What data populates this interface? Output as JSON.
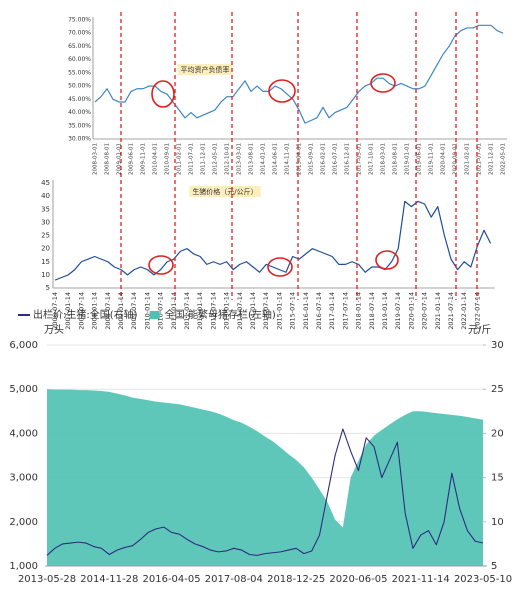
{
  "chart_data": [
    {
      "type": "line",
      "categories": [
        "2008-03-01",
        null,
        "2008-08-01",
        null,
        "2009-01-01",
        null,
        "2009-06-01",
        null,
        "2009-11-01",
        null,
        "2010-04-01",
        null,
        "2010-09-01",
        null,
        "2011-02-01",
        null,
        "2011-07-01",
        null,
        "2011-12-01",
        null,
        "2012-05-01",
        null,
        "2012-10-01",
        null,
        "2013-03-01",
        null,
        "2013-08-01",
        null,
        "2014-01-01",
        null,
        "2014-06-01",
        null,
        "2014-11-01",
        null,
        "2015-04-01",
        null,
        "2015-09-01",
        null,
        "2016-02-01",
        null,
        "2016-07-01",
        null,
        "2016-12-01",
        null,
        "2017-05-01",
        null,
        "2017-10-01",
        null,
        "2018-03-01",
        null,
        "2018-08-01",
        null,
        "2019-01-01",
        null,
        "2019-06-01",
        null,
        "2019-11-01",
        null,
        "2020-04-01",
        null,
        "2020-09-01",
        null,
        "2021-02-01",
        null,
        "2021-07-01",
        null,
        "2021-12-01",
        null,
        "2022-05-01"
      ],
      "series": [
        {
          "name": "平均资产负债率",
          "color": "#3d86c6",
          "values": [
            44,
            46,
            49,
            45,
            44,
            44,
            48,
            49,
            49,
            50,
            50,
            48,
            47,
            44,
            41,
            38,
            40,
            38,
            39,
            40,
            41,
            44,
            46,
            46,
            49,
            52,
            48,
            50,
            48,
            48,
            50,
            49,
            47,
            45,
            41,
            36,
            37,
            38,
            42,
            38,
            40,
            41,
            42,
            45,
            48,
            50,
            51,
            53,
            53,
            51,
            50,
            51,
            50,
            49,
            49,
            50,
            54,
            58,
            62,
            65,
            69,
            71,
            72,
            72,
            73,
            73,
            73,
            71,
            70
          ]
        }
      ],
      "ylim": [
        30,
        75
      ],
      "yticks": [
        {
          "value": 30,
          "label": "30.00%"
        },
        {
          "value": 35,
          "label": "35.00%"
        },
        {
          "value": 40,
          "label": "40.00%"
        },
        {
          "value": 45,
          "label": "45.00%"
        },
        {
          "value": 50,
          "label": "50.00%"
        },
        {
          "value": 55,
          "label": "55.00%"
        },
        {
          "value": 60,
          "label": "60.00%"
        },
        {
          "value": 65,
          "label": "65.00%"
        },
        {
          "value": 70,
          "label": "70.00%"
        },
        {
          "value": 75,
          "label": "75.00%"
        }
      ],
      "grid": false
    },
    {
      "type": "line",
      "categories": [
        "2006-07-14",
        null,
        "2007-01-14",
        null,
        "2007-07-14",
        null,
        "2008-01-14",
        null,
        "2008-07-14",
        null,
        "2009-01-14",
        null,
        "2009-07-14",
        null,
        "2010-01-14",
        null,
        "2010-07-14",
        null,
        "2011-01-14",
        null,
        "2011-07-14",
        null,
        "2012-01-14",
        null,
        "2012-07-14",
        null,
        "2013-01-14",
        null,
        "2013-07-14",
        null,
        "2014-01-14",
        null,
        "2014-07-14",
        null,
        "2015-01-14",
        null,
        "2015-07-14",
        null,
        "2016-01-14",
        null,
        "2016-07-14",
        null,
        "2017-01-14",
        null,
        "2017-07-14",
        null,
        "2018-01-14",
        null,
        "2018-07-14",
        null,
        "2019-01-14",
        null,
        "2019-07-14",
        null,
        "2020-01-14",
        null,
        "2020-07-14",
        null,
        "2021-01-14",
        null,
        "2021-07-14",
        null,
        "2022-01-14",
        null,
        "2022-07-14",
        null,
        null
      ],
      "series": [
        {
          "name": "生猪价格（元/公斤）",
          "color": "#1f4e9c",
          "values": [
            8,
            9,
            10,
            12,
            15,
            16,
            17,
            16,
            15,
            13,
            12,
            10,
            12,
            13,
            12,
            10,
            12,
            15,
            16,
            19,
            20,
            18,
            17,
            14,
            15,
            14,
            15,
            12,
            14,
            15,
            13,
            11,
            14,
            13,
            12,
            11,
            17,
            16,
            18,
            20,
            19,
            18,
            17,
            14,
            14,
            15,
            14,
            11,
            13,
            13,
            12,
            15,
            20,
            38,
            36,
            38,
            37,
            32,
            36,
            25,
            16,
            12,
            15,
            13,
            21,
            27,
            22
          ]
        }
      ],
      "ylim": [
        5,
        45
      ],
      "yticks": [
        5,
        10,
        15,
        20,
        25,
        30,
        35,
        40,
        45
      ],
      "grid": false
    },
    {
      "type": "combo",
      "y_label": "万头",
      "y2_label": "元/斤",
      "categories": [
        "2013-05-28",
        null,
        null,
        null,
        null,
        null,
        null,
        null,
        "2014-11-28",
        null,
        null,
        null,
        null,
        null,
        null,
        null,
        "2016-04-05",
        null,
        null,
        null,
        null,
        null,
        null,
        null,
        "2017-08-04",
        null,
        null,
        null,
        null,
        null,
        null,
        null,
        "2018-12-25",
        null,
        null,
        null,
        null,
        null,
        null,
        null,
        "2020-06-05",
        null,
        null,
        null,
        null,
        null,
        null,
        null,
        "2021-11-14",
        null,
        null,
        null,
        null,
        null,
        null,
        null,
        "2023-05-10"
      ],
      "series": [
        {
          "name": "出栏价:生猪:全国(右轴)",
          "type": "line",
          "axis": "y2",
          "color": "#2d2d7e",
          "values": [
            6.2,
            7.0,
            7.5,
            7.6,
            7.7,
            7.6,
            7.2,
            7.0,
            6.3,
            6.8,
            7.1,
            7.3,
            8.0,
            8.8,
            9.2,
            9.4,
            8.8,
            8.6,
            8.0,
            7.5,
            7.2,
            6.8,
            6.6,
            6.7,
            7.0,
            6.8,
            6.3,
            6.2,
            6.4,
            6.5,
            6.6,
            6.8,
            7.0,
            6.4,
            6.7,
            8.5,
            13.0,
            17.5,
            20.5,
            18.0,
            15.8,
            19.5,
            18.5,
            15.0,
            17.0,
            19.0,
            11.0,
            7.0,
            8.5,
            9.0,
            7.4,
            10.0,
            15.5,
            11.5,
            9.0,
            7.8,
            7.6
          ]
        },
        {
          "name": "全国:能繁母猪存栏(左轴)",
          "type": "area",
          "color": "#4ec1b2",
          "values": [
            5000,
            4990,
            4990,
            4990,
            4980,
            4980,
            4970,
            4960,
            4940,
            4900,
            4860,
            4810,
            4780,
            4750,
            4720,
            4700,
            4680,
            4660,
            4620,
            4580,
            4540,
            4500,
            4450,
            4380,
            4300,
            4240,
            4150,
            4050,
            3930,
            3820,
            3680,
            3530,
            3400,
            3230,
            3000,
            2730,
            2450,
            2050,
            1870,
            3000,
            3380,
            3750,
            3950,
            4080,
            4200,
            4320,
            4420,
            4500,
            4500,
            4480,
            4460,
            4440,
            4420,
            4400,
            4370,
            4340,
            4310
          ]
        }
      ],
      "ylim": [
        1000,
        6000
      ],
      "yticks": [
        {
          "value": 1000,
          "label": "1,000"
        },
        {
          "value": 2000,
          "label": "2,000"
        },
        {
          "value": 3000,
          "label": "3,000"
        },
        {
          "value": 4000,
          "label": "4,000"
        },
        {
          "value": 5000,
          "label": "5,000"
        },
        {
          "value": 6000,
          "label": "6,000"
        }
      ],
      "y2lim": [
        5,
        30
      ],
      "y2ticks": [
        5,
        10,
        15,
        20,
        25,
        30
      ],
      "grid": true,
      "legend": "top-left"
    }
  ]
}
